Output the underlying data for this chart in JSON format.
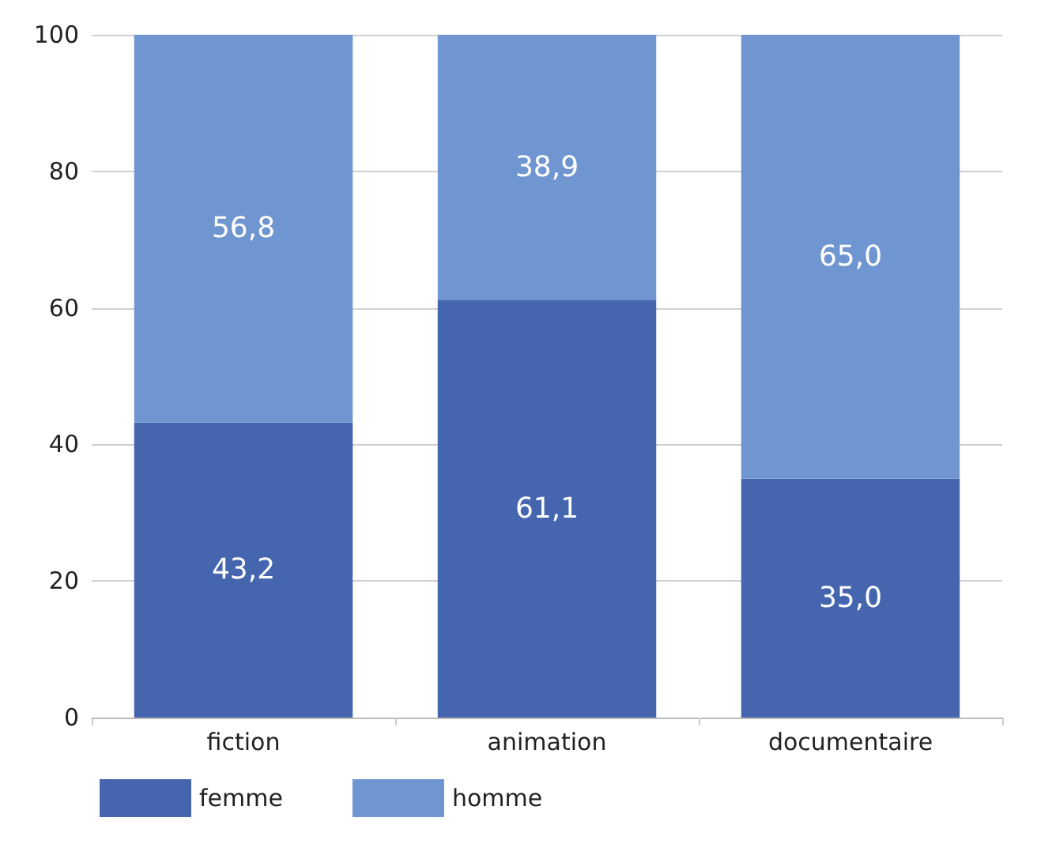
{
  "chart_data": {
    "type": "bar",
    "stacked": true,
    "categories": [
      "fiction",
      "animation",
      "documentaire"
    ],
    "series": [
      {
        "name": "femme",
        "color": "#4565ae",
        "values": [
          43.2,
          61.1,
          35.0
        ],
        "value_labels": [
          "43,2",
          "61,1",
          "35,0"
        ]
      },
      {
        "name": "homme",
        "color": "#7096d1",
        "values": [
          56.8,
          38.9,
          65.0
        ],
        "value_labels": [
          "56,8",
          "38,9",
          "65,0"
        ]
      }
    ],
    "ylim": [
      0,
      100
    ],
    "yticks": [
      0,
      20,
      40,
      60,
      80,
      100
    ],
    "grid": "y",
    "legend": "bottom left"
  }
}
